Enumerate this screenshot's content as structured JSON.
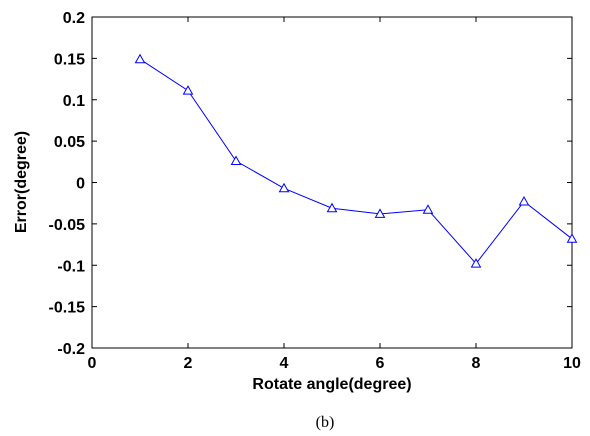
{
  "chart_data": {
    "type": "line",
    "title": "",
    "xlabel": "Rotate angle(degree)",
    "ylabel": "Error(degree)",
    "xlim": [
      0,
      10
    ],
    "ylim": [
      -0.2,
      0.2
    ],
    "xticks": [
      0,
      2,
      4,
      6,
      8,
      10
    ],
    "xtick_labels": [
      "0",
      "2",
      "4",
      "6",
      "8",
      "10"
    ],
    "yticks": [
      0.2,
      0.15,
      0.1,
      0.05,
      0,
      -0.05,
      -0.1,
      -0.15,
      -0.2
    ],
    "ytick_labels": [
      "0.2",
      "0.15",
      "0.1",
      "0.05",
      "0",
      "-0.05",
      "-0.1",
      "-0.15",
      "-0.2"
    ],
    "grid": false,
    "series": [
      {
        "marker": "triangle",
        "color": "#0000ff",
        "x": [
          1,
          2,
          3,
          4,
          5,
          6,
          7,
          8,
          9,
          10
        ],
        "y": [
          0.149,
          0.111,
          0.026,
          -0.007,
          -0.031,
          -0.038,
          -0.033,
          -0.098,
          -0.023,
          -0.068
        ]
      }
    ]
  },
  "caption": "(b)"
}
